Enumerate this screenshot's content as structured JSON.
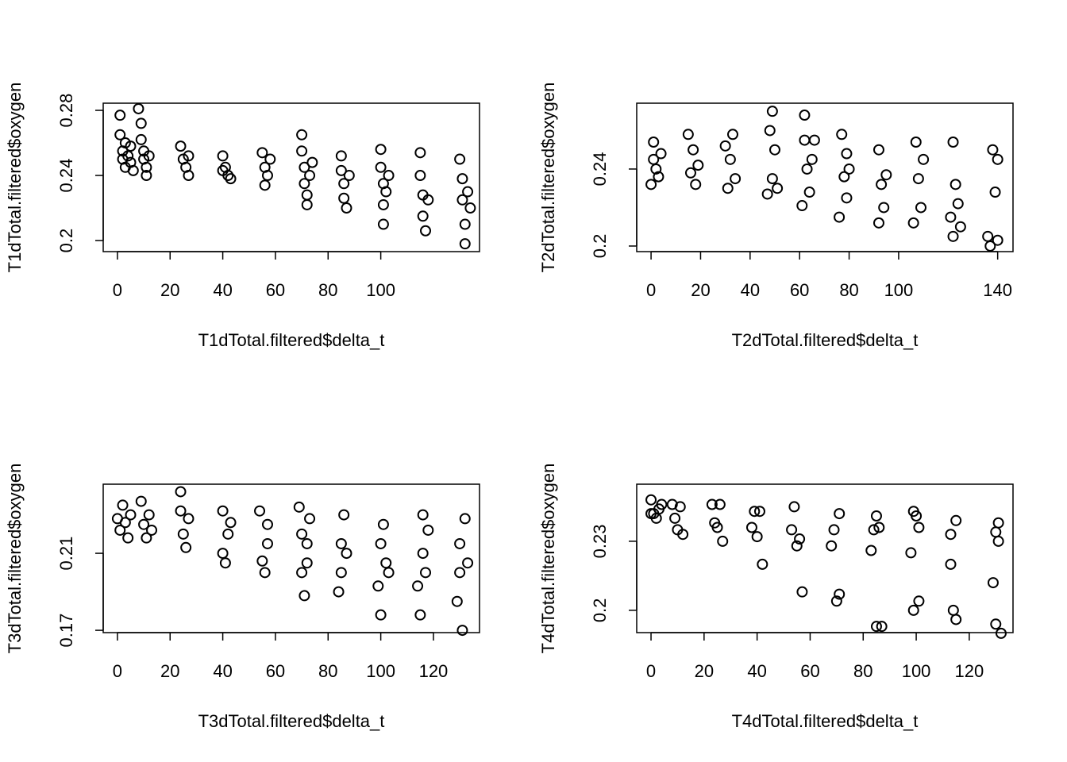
{
  "chart_data": [
    {
      "type": "scatter",
      "xlabel": "T1dTotal.filtered$delta_t",
      "ylabel": "T1dTotal.filtered$oxygen",
      "color": "#000000",
      "xlim": [
        -5.4,
        137.5
      ],
      "ylim": [
        0.1932,
        0.2844
      ],
      "xticks": [
        0,
        20,
        40,
        60,
        80,
        100
      ],
      "yticks": [
        0.2,
        0.24,
        0.28
      ],
      "x": [
        1,
        1,
        2,
        2,
        3,
        3,
        4,
        5,
        5,
        6,
        8,
        9,
        9,
        10,
        10,
        11,
        11,
        12,
        24,
        25,
        26,
        27,
        27,
        40,
        41,
        42,
        43,
        40,
        55,
        56,
        56,
        57,
        58,
        70,
        70,
        71,
        71,
        72,
        72,
        73,
        74,
        85,
        85,
        86,
        86,
        87,
        88,
        100,
        100,
        101,
        101,
        101,
        102,
        103,
        115,
        115,
        116,
        116,
        117,
        118,
        130,
        131,
        131,
        132,
        132,
        133,
        134
      ],
      "y": [
        0.277,
        0.265,
        0.255,
        0.25,
        0.245,
        0.26,
        0.252,
        0.258,
        0.248,
        0.243,
        0.281,
        0.272,
        0.262,
        0.255,
        0.25,
        0.245,
        0.24,
        0.252,
        0.258,
        0.25,
        0.245,
        0.24,
        0.252,
        0.252,
        0.245,
        0.24,
        0.238,
        0.243,
        0.254,
        0.245,
        0.234,
        0.24,
        0.25,
        0.265,
        0.255,
        0.245,
        0.235,
        0.228,
        0.222,
        0.24,
        0.248,
        0.252,
        0.243,
        0.235,
        0.226,
        0.22,
        0.24,
        0.256,
        0.245,
        0.235,
        0.222,
        0.21,
        0.23,
        0.24,
        0.254,
        0.24,
        0.228,
        0.215,
        0.206,
        0.225,
        0.25,
        0.238,
        0.225,
        0.21,
        0.198,
        0.23,
        0.22
      ]
    },
    {
      "type": "scatter",
      "xlabel": "T2dTotal.filtered$delta_t",
      "ylabel": "T2dTotal.filtered$oxygen",
      "color": "#000000",
      "xlim": [
        -5.8,
        146.2
      ],
      "ylim": [
        0.1971,
        0.2742
      ],
      "xticks": [
        0,
        20,
        40,
        60,
        80,
        100,
        140
      ],
      "yticks": [
        0.2,
        0.24
      ],
      "x": [
        0,
        1,
        1,
        2,
        3,
        4,
        15,
        16,
        17,
        18,
        19,
        30,
        31,
        32,
        33,
        34,
        47,
        48,
        49,
        49,
        50,
        51,
        61,
        62,
        62,
        63,
        64,
        65,
        66,
        76,
        77,
        78,
        79,
        79,
        80,
        92,
        92,
        93,
        94,
        95,
        106,
        107,
        108,
        109,
        110,
        121,
        122,
        122,
        123,
        124,
        125,
        136,
        137,
        138,
        139,
        140,
        140
      ],
      "y": [
        0.232,
        0.245,
        0.254,
        0.24,
        0.236,
        0.248,
        0.258,
        0.238,
        0.25,
        0.232,
        0.242,
        0.252,
        0.23,
        0.245,
        0.258,
        0.235,
        0.227,
        0.26,
        0.235,
        0.27,
        0.25,
        0.23,
        0.221,
        0.268,
        0.255,
        0.24,
        0.228,
        0.245,
        0.255,
        0.215,
        0.258,
        0.236,
        0.225,
        0.248,
        0.24,
        0.212,
        0.25,
        0.232,
        0.22,
        0.237,
        0.212,
        0.254,
        0.235,
        0.22,
        0.245,
        0.215,
        0.254,
        0.205,
        0.232,
        0.222,
        0.21,
        0.205,
        0.2,
        0.25,
        0.228,
        0.245,
        0.203
      ]
    },
    {
      "type": "scatter",
      "xlabel": "T3dTotal.filtered$delta_t",
      "ylabel": "T3dTotal.filtered$oxygen",
      "color": "#000000",
      "xlim": [
        -5.4,
        137.5
      ],
      "ylim": [
        0.1688,
        0.2459
      ],
      "xticks": [
        0,
        20,
        40,
        60,
        80,
        100,
        120
      ],
      "yticks": [
        0.17,
        0.21
      ],
      "x": [
        0,
        1,
        2,
        3,
        4,
        5,
        9,
        10,
        11,
        12,
        13,
        24,
        24,
        25,
        26,
        27,
        40,
        40,
        41,
        42,
        43,
        54,
        55,
        56,
        57,
        57,
        69,
        70,
        70,
        71,
        72,
        72,
        73,
        84,
        85,
        85,
        86,
        87,
        99,
        100,
        100,
        101,
        102,
        103,
        114,
        115,
        116,
        116,
        117,
        118,
        129,
        130,
        130,
        131,
        132,
        133
      ],
      "y": [
        0.228,
        0.222,
        0.235,
        0.226,
        0.218,
        0.23,
        0.237,
        0.225,
        0.218,
        0.23,
        0.222,
        0.242,
        0.232,
        0.22,
        0.213,
        0.228,
        0.232,
        0.21,
        0.205,
        0.22,
        0.226,
        0.232,
        0.206,
        0.2,
        0.215,
        0.225,
        0.234,
        0.2,
        0.22,
        0.188,
        0.215,
        0.205,
        0.228,
        0.19,
        0.215,
        0.2,
        0.23,
        0.21,
        0.193,
        0.178,
        0.215,
        0.225,
        0.205,
        0.2,
        0.193,
        0.178,
        0.23,
        0.21,
        0.2,
        0.222,
        0.185,
        0.2,
        0.215,
        0.17,
        0.228,
        0.205
      ]
    },
    {
      "type": "scatter",
      "xlabel": "T4dTotal.filtered$delta_t",
      "ylabel": "T4dTotal.filtered$oxygen",
      "color": "#000000",
      "xlim": [
        -5.4,
        136.5
      ],
      "ylim": [
        0.1903,
        0.2548
      ],
      "xticks": [
        0,
        20,
        40,
        60,
        80,
        100,
        120
      ],
      "yticks": [
        0.2,
        0.23
      ],
      "x": [
        0,
        0,
        1,
        2,
        3,
        4,
        8,
        9,
        10,
        11,
        12,
        23,
        24,
        25,
        26,
        27,
        38,
        39,
        40,
        41,
        42,
        53,
        54,
        55,
        56,
        57,
        68,
        69,
        70,
        71,
        71,
        83,
        84,
        85,
        85,
        86,
        87,
        98,
        99,
        99,
        100,
        101,
        101,
        113,
        113,
        114,
        115,
        115,
        129,
        130,
        130,
        131,
        131,
        132
      ],
      "y": [
        0.248,
        0.242,
        0.242,
        0.24,
        0.244,
        0.246,
        0.246,
        0.24,
        0.235,
        0.245,
        0.233,
        0.246,
        0.238,
        0.236,
        0.246,
        0.23,
        0.236,
        0.243,
        0.232,
        0.243,
        0.22,
        0.235,
        0.245,
        0.228,
        0.231,
        0.208,
        0.228,
        0.235,
        0.204,
        0.242,
        0.207,
        0.226,
        0.235,
        0.241,
        0.193,
        0.236,
        0.193,
        0.225,
        0.243,
        0.2,
        0.241,
        0.204,
        0.236,
        0.22,
        0.233,
        0.2,
        0.239,
        0.196,
        0.212,
        0.234,
        0.194,
        0.238,
        0.23,
        0.19
      ]
    }
  ]
}
